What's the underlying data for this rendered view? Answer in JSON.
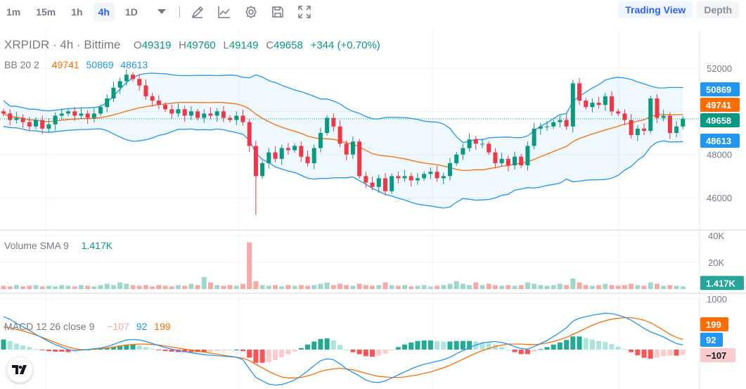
{
  "toolbar": {
    "timeframes": [
      "1m",
      "15m",
      "1h",
      "4h",
      "1D"
    ],
    "active": "4h",
    "icons": [
      "pencil-icon",
      "indicator-chart-icon",
      "gear-icon",
      "save-icon",
      "fullscreen-icon"
    ]
  },
  "views": {
    "trading": "Trading View",
    "depth": "Depth"
  },
  "header": {
    "symbol": "XRPIDR · 4h · Bittime",
    "o_label": "O",
    "o": "49319",
    "h_label": "H",
    "h": "49760",
    "l_label": "L",
    "l": "49149",
    "c_label": "C",
    "c": "49658",
    "change": "+344 (+0.70%)"
  },
  "bb": {
    "label": "BB 20 2",
    "basis": "49741",
    "upper": "50869",
    "lower": "48613"
  },
  "volume": {
    "label": "Volume SMA 9",
    "value": "1.417K"
  },
  "macd": {
    "label": "MACD 12 26 close 9",
    "hist": "−107",
    "macd": "92",
    "signal": "199"
  },
  "colors": {
    "up": "#089981",
    "down": "#f23645",
    "bb_band": "#2196f3",
    "bb_basis": "#ff6d00",
    "macd": "#2196f3",
    "signal": "#ff6d00"
  },
  "chart_data": [
    {
      "type": "candlestick",
      "title": "XRPIDR · 4h · Bittime",
      "y_ticks": [
        "52000",
        "48000",
        "46000"
      ],
      "ylim": [
        45000,
        53000
      ],
      "last_price": 49658,
      "closes": [
        49900,
        49600,
        49700,
        49500,
        49300,
        49600,
        49200,
        49400,
        49800,
        49900,
        50000,
        49800,
        49900,
        49700,
        49900,
        50200,
        50600,
        51100,
        51400,
        51700,
        51500,
        51200,
        50700,
        50500,
        50300,
        50100,
        49900,
        50100,
        49800,
        50000,
        49700,
        49900,
        49800,
        50000,
        49700,
        49600,
        49800,
        49500,
        48400,
        47000,
        47600,
        48100,
        47800,
        48300,
        48200,
        48400,
        47900,
        47600,
        48300,
        49000,
        49700,
        49300,
        48500,
        48000,
        48600,
        47000,
        46700,
        46500,
        46900,
        46300,
        47000,
        46900,
        47000,
        46800,
        46900,
        47100,
        47200,
        46900,
        47000,
        47600,
        48000,
        48300,
        48700,
        48500,
        48500,
        48100,
        47600,
        47800,
        47500,
        47900,
        47500,
        48400,
        49200,
        49300,
        49300,
        49500,
        49600,
        49300,
        51300,
        50500,
        50200,
        50400,
        50300,
        50700,
        50000,
        49900,
        49600,
        48900,
        49200,
        49100,
        50600,
        49700,
        49800,
        49000,
        49300,
        49658
      ],
      "bb_labels": {
        "upper": 50869,
        "basis": 49741,
        "lower": 48613
      }
    },
    {
      "type": "bar",
      "title": "Volume SMA 9",
      "y_ticks": [
        "40K",
        "20K"
      ],
      "unit": "K",
      "last": 1.417,
      "values": [
        2.5,
        2,
        3,
        2,
        2.5,
        3,
        2,
        2.5,
        2,
        3,
        2.5,
        2,
        3,
        2.5,
        2,
        3,
        4,
        3,
        5,
        4,
        3,
        2.5,
        3,
        2,
        3,
        2.5,
        2,
        3,
        2.5,
        4,
        3,
        9,
        5,
        3,
        2.5,
        3,
        2.5,
        4,
        35,
        6,
        3,
        2.5,
        3,
        2,
        3,
        2.5,
        3,
        2.5,
        3,
        4,
        5,
        3,
        4,
        3,
        2.5,
        4,
        3,
        2.5,
        3,
        5,
        3,
        2.5,
        3,
        2,
        2.5,
        3,
        2,
        2.5,
        3,
        4,
        6,
        4,
        3,
        5,
        3,
        4,
        3,
        2.5,
        3,
        2.5,
        3,
        5,
        4,
        3,
        2.5,
        3,
        4,
        3,
        8,
        5,
        3,
        2.5,
        3,
        4,
        3,
        2.5,
        3,
        4,
        3,
        2.5,
        5,
        4,
        2.5,
        3,
        2.5,
        2
      ]
    },
    {
      "type": "line+bar",
      "title": "MACD 12 26 close 9",
      "y_ticks": [
        "1000"
      ],
      "macd": [
        650,
        600,
        520,
        450,
        380,
        300,
        230,
        160,
        100,
        50,
        0,
        -20,
        -10,
        0,
        20,
        30,
        60,
        100,
        150,
        190,
        200,
        190,
        160,
        120,
        80,
        40,
        10,
        -20,
        -40,
        -60,
        -80,
        -100,
        -110,
        -120,
        -130,
        -140,
        -150,
        -200,
        -380,
        -550,
        -620,
        -680,
        -700,
        -690,
        -650,
        -600,
        -520,
        -420,
        -320,
        -220,
        -180,
        -200,
        -280,
        -380,
        -450,
        -520,
        -600,
        -640,
        -650,
        -620,
        -560,
        -500,
        -440,
        -380,
        -330,
        -290,
        -260,
        -230,
        -200,
        -150,
        -80,
        -20,
        40,
        90,
        130,
        150,
        160,
        140,
        110,
        60,
        20,
        10,
        60,
        120,
        180,
        260,
        340,
        430,
        560,
        620,
        650,
        680,
        700,
        720,
        710,
        680,
        640,
        580,
        500,
        420,
        350,
        300,
        250,
        180,
        120,
        92
      ],
      "signal": [
        450,
        430,
        400,
        370,
        330,
        290,
        240,
        190,
        140,
        90,
        50,
        20,
        0,
        0,
        10,
        20,
        30,
        50,
        70,
        90,
        100,
        110,
        110,
        100,
        90,
        70,
        50,
        30,
        10,
        -10,
        -30,
        -50,
        -70,
        -90,
        -110,
        -130,
        -150,
        -170,
        -220,
        -290,
        -360,
        -430,
        -490,
        -540,
        -560,
        -560,
        -550,
        -520,
        -480,
        -430,
        -400,
        -380,
        -370,
        -380,
        -400,
        -430,
        -470,
        -500,
        -530,
        -540,
        -550,
        -550,
        -540,
        -520,
        -500,
        -470,
        -440,
        -400,
        -360,
        -310,
        -250,
        -190,
        -130,
        -70,
        -20,
        20,
        60,
        90,
        110,
        110,
        110,
        100,
        100,
        110,
        130,
        160,
        200,
        240,
        300,
        360,
        420,
        480,
        530,
        570,
        600,
        620,
        630,
        630,
        610,
        580,
        530,
        460,
        380,
        300,
        240,
        199
      ]
    }
  ]
}
